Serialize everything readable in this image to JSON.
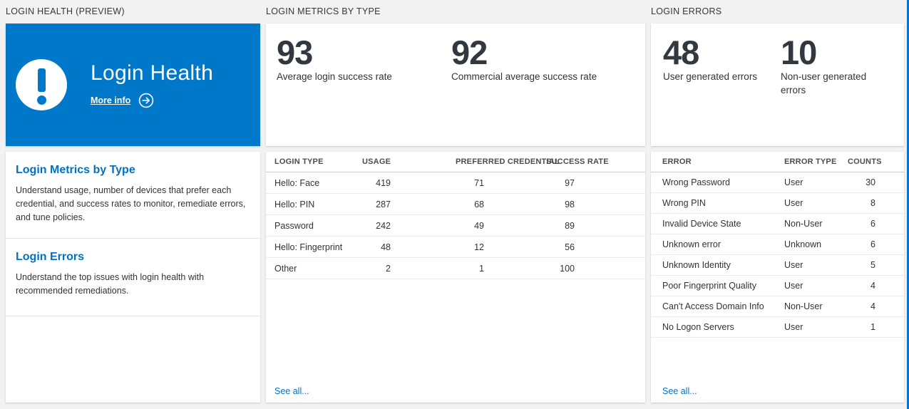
{
  "colors": {
    "tile_blue": "#0078ca",
    "link_blue": "#0072c6",
    "edge_blue": "#0078d4",
    "page_bg": "#f2f2f2",
    "number_text": "#32383f"
  },
  "panels": {
    "health": {
      "header": "LOGIN HEALTH (PREVIEW)",
      "tile": {
        "title": "Login Health",
        "more_info_label": "More info",
        "icon": "exclamation-circle-icon",
        "arrow_icon": "arrow-right-circle-icon"
      },
      "sections": [
        {
          "title": "Login Metrics by Type",
          "description": "Understand usage, number of devices that prefer each credential, and success rates to monitor, remediate errors, and tune policies."
        },
        {
          "title": "Login Errors",
          "description": "Understand the top issues with login health with recommended remediations."
        }
      ]
    },
    "metrics": {
      "header": "LOGIN METRICS BY TYPE",
      "stats": [
        {
          "value": "93",
          "label": "Average login success rate"
        },
        {
          "value": "92",
          "label": "Commercial average success rate"
        }
      ],
      "table": {
        "columns": [
          "LOGIN TYPE",
          "USAGE",
          "PREFERRED CREDENTIAL",
          "SUCCESS RATE"
        ],
        "rows": [
          [
            "Hello: Face",
            "419",
            "71",
            "97"
          ],
          [
            "Hello: PIN",
            "287",
            "68",
            "98"
          ],
          [
            "Password",
            "242",
            "49",
            "89"
          ],
          [
            "Hello: Fingerprint",
            "48",
            "12",
            "56"
          ],
          [
            "Other",
            "2",
            "1",
            "100"
          ]
        ]
      },
      "see_all_label": "See all..."
    },
    "errors": {
      "header": "LOGIN ERRORS",
      "stats": [
        {
          "value": "48",
          "label": "User generated errors"
        },
        {
          "value": "10",
          "label": "Non-user generated errors"
        }
      ],
      "table": {
        "columns": [
          "ERROR",
          "ERROR TYPE",
          "COUNTS"
        ],
        "rows": [
          [
            "Wrong Password",
            "User",
            "30"
          ],
          [
            "Wrong PIN",
            "User",
            "8"
          ],
          [
            "Invalid Device State",
            "Non-User",
            "6"
          ],
          [
            "Unknown error",
            "Unknown",
            "6"
          ],
          [
            "Unknown Identity",
            "User",
            "5"
          ],
          [
            "Poor Fingerprint Quality",
            "User",
            "4"
          ],
          [
            "Can't Access Domain Info",
            "Non-User",
            "4"
          ],
          [
            "No Logon Servers",
            "User",
            "1"
          ]
        ]
      },
      "see_all_label": "See all..."
    }
  }
}
